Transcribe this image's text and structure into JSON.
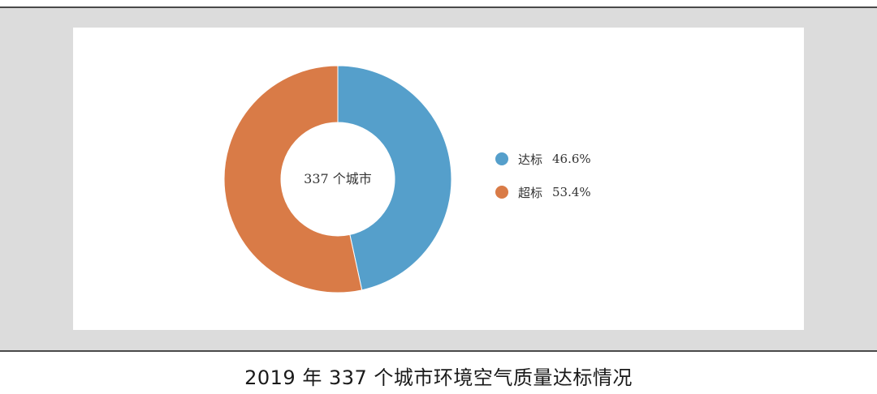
{
  "caption": "2019 年 337 个城市环境空气质量达标情况",
  "chart_data": {
    "type": "pie",
    "style": "donut",
    "center_label": "337 个城市",
    "series": [
      {
        "name": "达标",
        "value": 46.6,
        "label": "46.6%",
        "color": "#559fcb"
      },
      {
        "name": "超标",
        "value": 53.4,
        "label": "53.4%",
        "color": "#d97b47"
      }
    ],
    "legend": "right",
    "start": "top",
    "direction": "clockwise"
  },
  "colors": {
    "background_panel": "#dcdcdc",
    "card": "#ffffff",
    "rule": "#4a4a4a"
  }
}
